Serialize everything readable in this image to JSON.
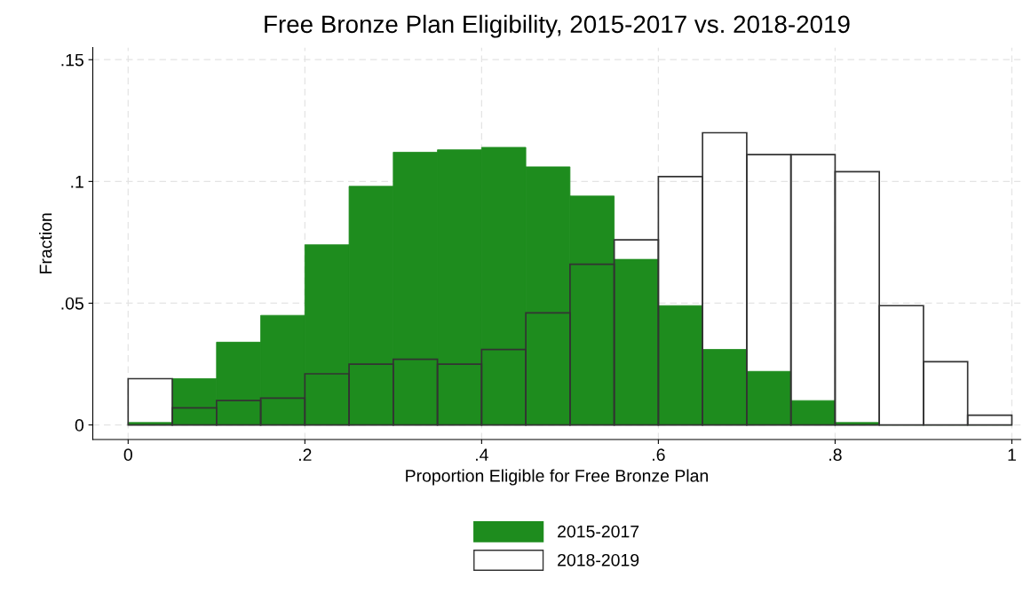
{
  "chart_data": {
    "type": "histogram",
    "title": "Free Bronze Plan Eligibility, 2015-2017 vs. 2018-2019",
    "xlabel": "Proportion Eligible for Free Bronze Plan",
    "ylabel": "Fraction",
    "bins": [
      0,
      0.05,
      0.1,
      0.15,
      0.2,
      0.25,
      0.3,
      0.35,
      0.4,
      0.45,
      0.5,
      0.55,
      0.6,
      0.65,
      0.7,
      0.75,
      0.8,
      0.85,
      0.9,
      0.95,
      1
    ],
    "series": [
      {
        "name": "2015-2017",
        "color": "#1e8c1e",
        "values": [
          0.001,
          0.019,
          0.034,
          0.045,
          0.074,
          0.098,
          0.112,
          0.113,
          0.114,
          0.106,
          0.094,
          0.068,
          0.049,
          0.031,
          0.022,
          0.01,
          0.001,
          0,
          0,
          0
        ]
      },
      {
        "name": "2018-2019",
        "color": "#333333",
        "values": [
          0.019,
          0.007,
          0.01,
          0.011,
          0.021,
          0.025,
          0.027,
          0.025,
          0.031,
          0.046,
          0.066,
          0.076,
          0.102,
          0.12,
          0.111,
          0.111,
          0.104,
          0.049,
          0.026,
          0.004
        ]
      }
    ],
    "xlim": [
      -0.04,
      1.01
    ],
    "ylim": [
      -0.006,
      0.155
    ],
    "xticks": [
      0,
      {
        "value": 0.2,
        "label": ".2"
      },
      {
        "value": 0.4,
        "label": ".4"
      },
      {
        "value": 0.6,
        "label": ".6"
      },
      {
        "value": 0.8,
        "label": ".8"
      },
      1
    ],
    "yticks": [
      0,
      {
        "value": 0.05,
        "label": ".05"
      },
      {
        "value": 0.1,
        "label": ".1"
      },
      {
        "value": 0.15,
        "label": ".15"
      }
    ],
    "grid": true,
    "legend": "bottom"
  }
}
